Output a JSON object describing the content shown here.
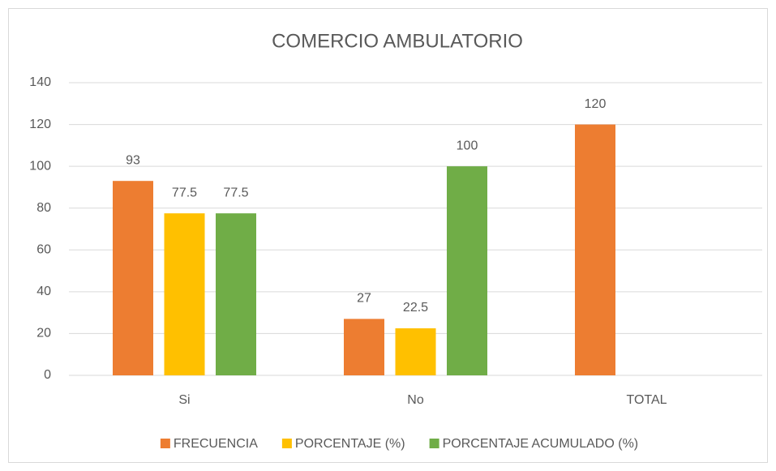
{
  "chart_data": {
    "type": "bar",
    "title": "COMERCIO AMBULATORIO",
    "categories": [
      "Si",
      "No",
      "TOTAL"
    ],
    "series": [
      {
        "name": "FRECUENCIA",
        "color": "#ed7d31",
        "values": [
          93,
          27,
          120
        ]
      },
      {
        "name": "PORCENTAJE (%)",
        "color": "#ffc000",
        "values": [
          77.5,
          22.5,
          null
        ]
      },
      {
        "name": "PORCENTAJE ACUMULADO (%)",
        "color": "#70ad47",
        "values": [
          77.5,
          100,
          null
        ]
      }
    ],
    "ylim": [
      0,
      140
    ],
    "yticks": [
      0,
      20,
      40,
      60,
      80,
      100,
      120,
      140
    ],
    "grid": true,
    "legend": "bottom"
  }
}
